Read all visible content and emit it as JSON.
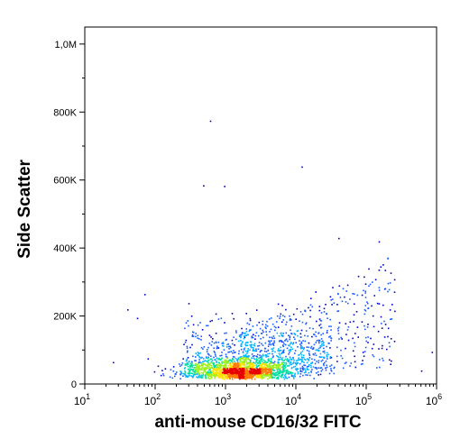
{
  "chart_data": {
    "type": "scatter",
    "subtype": "flow-cytometry-density-dot-plot",
    "title": "",
    "xlabel": "anti-mouse CD16/32 FITC",
    "ylabel": "Side Scatter",
    "x_scale": "log",
    "y_scale": "linear",
    "xlim": [
      10,
      1000000
    ],
    "ylim": [
      0,
      1050000
    ],
    "x_ticks": [
      {
        "value": 10,
        "base": "10",
        "exp": "1"
      },
      {
        "value": 100,
        "base": "10",
        "exp": "2"
      },
      {
        "value": 1000,
        "base": "10",
        "exp": "3"
      },
      {
        "value": 10000,
        "base": "10",
        "exp": "4"
      },
      {
        "value": 100000,
        "base": "10",
        "exp": "5"
      },
      {
        "value": 1000000,
        "base": "10",
        "exp": "6"
      }
    ],
    "y_ticks": [
      {
        "value": 0,
        "label": "0"
      },
      {
        "value": 200000,
        "label": "200K"
      },
      {
        "value": 400000,
        "label": "400K"
      },
      {
        "value": 600000,
        "label": "600K"
      },
      {
        "value": 800000,
        "label": "800K"
      },
      {
        "value": 1000000,
        "label": "1,0M"
      }
    ],
    "grid": false,
    "legend": "none",
    "density_colors": [
      "#0000cc",
      "#1a5cff",
      "#00b3ff",
      "#00e0a0",
      "#9ef01a",
      "#ffe000",
      "#ff7a00",
      "#e60000"
    ],
    "population": {
      "main_cluster_center": {
        "x": 1500,
        "y": 40000
      },
      "approx_event_count": 2600
    },
    "outliers": [
      {
        "x": 600,
        "y": 775000
      },
      {
        "x": 480,
        "y": 585000
      },
      {
        "x": 950,
        "y": 583000
      },
      {
        "x": 12000,
        "y": 640000
      },
      {
        "x": 40000,
        "y": 430000
      },
      {
        "x": 150000,
        "y": 420000
      },
      {
        "x": 220000,
        "y": 328000
      },
      {
        "x": 40,
        "y": 220000
      },
      {
        "x": 70,
        "y": 265000
      },
      {
        "x": 55,
        "y": 195000
      },
      {
        "x": 25,
        "y": 65000
      },
      {
        "x": 600000,
        "y": 40000
      },
      {
        "x": 850000,
        "y": 95000
      }
    ]
  }
}
